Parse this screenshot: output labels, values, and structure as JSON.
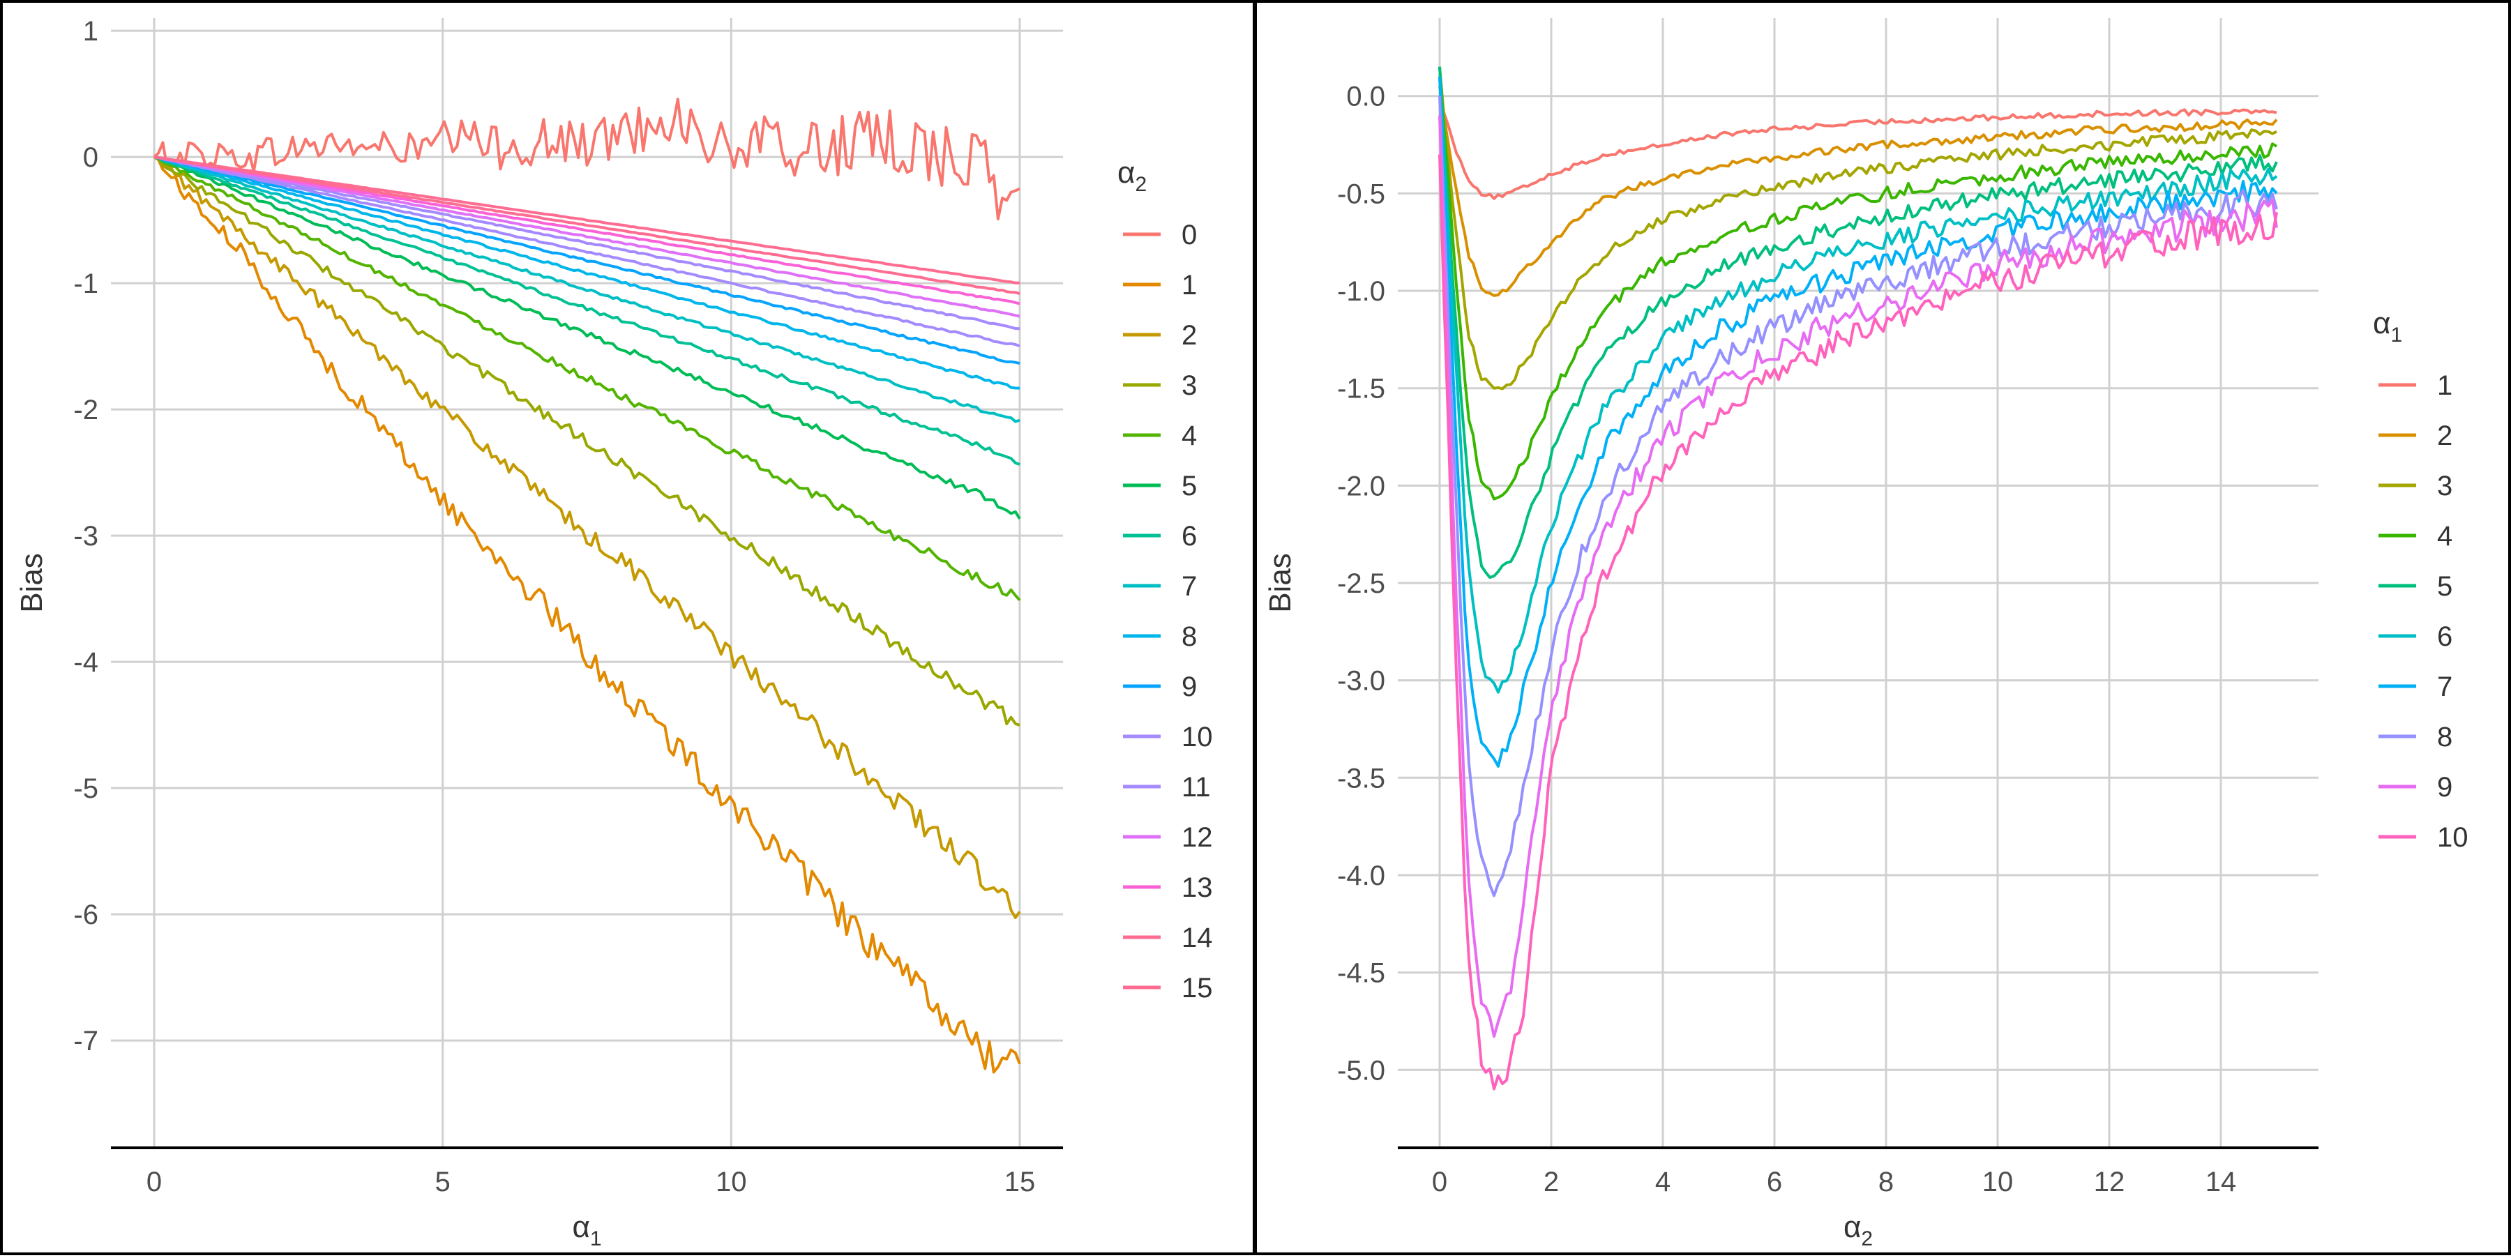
{
  "chart_data": [
    {
      "type": "line",
      "panel": "left",
      "xlabel": "α",
      "xlabel_sub": "1",
      "ylabel": "Bias",
      "xlim": [
        -0.75,
        15.75
      ],
      "ylim": [
        -7.85,
        1.1
      ],
      "x_ticks": [
        0,
        5,
        10,
        15
      ],
      "y_ticks": [
        1,
        0,
        -1,
        -2,
        -3,
        -4,
        -5,
        -6,
        -7
      ],
      "x": [
        0,
        0.75,
        1.5,
        2.25,
        3,
        3.75,
        4.5,
        5.25,
        6,
        6.75,
        7.5,
        8.25,
        9,
        9.75,
        10.5,
        11.25,
        12,
        12.75,
        13.5,
        14.25,
        15
      ],
      "legend_title": "α",
      "legend_title_sub": "2",
      "legend_position": "right",
      "series": [
        {
          "name": "0",
          "color": "#F8766D",
          "noise": 0.28,
          "values": [
            0,
            0.03,
            0,
            0.05,
            0.1,
            0.08,
            0.05,
            0.15,
            0.08,
            0.12,
            0.1,
            0.2,
            0.35,
            0.05,
            0.1,
            0.05,
            0.1,
            0.12,
            0.05,
            -0.05,
            -0.45
          ]
        },
        {
          "name": "1",
          "color": "#E38900",
          "noise": 0.14,
          "values": [
            0,
            -0.4,
            -0.75,
            -1.2,
            -1.65,
            -2.05,
            -2.45,
            -2.85,
            -3.2,
            -3.55,
            -3.95,
            -4.3,
            -4.65,
            -5.0,
            -5.35,
            -5.7,
            -6.05,
            -6.4,
            -6.7,
            -7.05,
            -7.25
          ]
        },
        {
          "name": "2",
          "color": "#C49A00",
          "noise": 0.1,
          "values": [
            0,
            -0.3,
            -0.6,
            -0.9,
            -1.2,
            -1.5,
            -1.8,
            -2.1,
            -2.4,
            -2.7,
            -3.0,
            -3.25,
            -3.55,
            -3.85,
            -4.15,
            -4.45,
            -4.75,
            -5.05,
            -5.35,
            -5.65,
            -6.0
          ]
        },
        {
          "name": "3",
          "color": "#99A800",
          "noise": 0.06,
          "values": [
            0,
            -0.23,
            -0.45,
            -0.68,
            -0.9,
            -1.13,
            -1.35,
            -1.58,
            -1.8,
            -2.03,
            -2.25,
            -2.48,
            -2.7,
            -2.93,
            -3.15,
            -3.38,
            -3.6,
            -3.83,
            -4.05,
            -4.28,
            -4.5
          ]
        },
        {
          "name": "4",
          "color": "#53B400",
          "noise": 0.04,
          "values": [
            0,
            -0.18,
            -0.35,
            -0.53,
            -0.7,
            -0.88,
            -1.05,
            -1.23,
            -1.4,
            -1.58,
            -1.75,
            -1.93,
            -2.1,
            -2.28,
            -2.45,
            -2.63,
            -2.8,
            -2.98,
            -3.15,
            -3.33,
            -3.5
          ]
        },
        {
          "name": "5",
          "color": "#00BC56",
          "noise": 0.03,
          "values": [
            0,
            -0.14,
            -0.28,
            -0.42,
            -0.56,
            -0.7,
            -0.84,
            -0.98,
            -1.12,
            -1.26,
            -1.4,
            -1.54,
            -1.68,
            -1.82,
            -1.96,
            -2.1,
            -2.24,
            -2.38,
            -2.52,
            -2.66,
            -2.85
          ]
        },
        {
          "name": "6",
          "color": "#00C094",
          "noise": 0.02,
          "values": [
            0,
            -0.12,
            -0.24,
            -0.36,
            -0.48,
            -0.6,
            -0.72,
            -0.84,
            -0.96,
            -1.08,
            -1.2,
            -1.32,
            -1.44,
            -1.56,
            -1.68,
            -1.8,
            -1.92,
            -2.04,
            -2.16,
            -2.28,
            -2.42
          ]
        },
        {
          "name": "7",
          "color": "#00BFC4",
          "noise": 0.015,
          "values": [
            0,
            -0.105,
            -0.21,
            -0.315,
            -0.42,
            -0.525,
            -0.63,
            -0.735,
            -0.84,
            -0.945,
            -1.05,
            -1.155,
            -1.26,
            -1.365,
            -1.47,
            -1.575,
            -1.68,
            -1.785,
            -1.89,
            -1.995,
            -2.1
          ]
        },
        {
          "name": "8",
          "color": "#00B6EB",
          "noise": 0.012,
          "values": [
            0,
            -0.092,
            -0.184,
            -0.276,
            -0.368,
            -0.46,
            -0.552,
            -0.644,
            -0.736,
            -0.828,
            -0.92,
            -1.012,
            -1.104,
            -1.196,
            -1.288,
            -1.38,
            -1.472,
            -1.564,
            -1.656,
            -1.748,
            -1.84
          ]
        },
        {
          "name": "9",
          "color": "#06A4FF",
          "noise": 0.01,
          "values": [
            0,
            -0.082,
            -0.164,
            -0.246,
            -0.328,
            -0.41,
            -0.492,
            -0.574,
            -0.656,
            -0.738,
            -0.82,
            -0.902,
            -0.984,
            -1.066,
            -1.148,
            -1.23,
            -1.312,
            -1.394,
            -1.476,
            -1.558,
            -1.64
          ]
        },
        {
          "name": "10",
          "color": "#A58AFF",
          "noise": 0.008,
          "values": [
            0,
            -0.075,
            -0.15,
            -0.225,
            -0.3,
            -0.375,
            -0.45,
            -0.525,
            -0.6,
            -0.675,
            -0.75,
            -0.825,
            -0.9,
            -0.975,
            -1.05,
            -1.125,
            -1.2,
            -1.275,
            -1.35,
            -1.425,
            -1.5
          ]
        },
        {
          "name": "11",
          "color": "#A58AFF",
          "noise": 0.007,
          "values": [
            0,
            -0.068,
            -0.136,
            -0.204,
            -0.272,
            -0.34,
            -0.408,
            -0.476,
            -0.544,
            -0.612,
            -0.68,
            -0.748,
            -0.816,
            -0.884,
            -0.952,
            -1.02,
            -1.088,
            -1.156,
            -1.224,
            -1.292,
            -1.36
          ]
        },
        {
          "name": "12",
          "color": "#DF70F8",
          "noise": 0.006,
          "values": [
            0,
            -0.063,
            -0.126,
            -0.189,
            -0.252,
            -0.315,
            -0.378,
            -0.441,
            -0.504,
            -0.567,
            -0.63,
            -0.693,
            -0.756,
            -0.819,
            -0.882,
            -0.945,
            -1.008,
            -1.071,
            -1.134,
            -1.197,
            -1.26
          ]
        },
        {
          "name": "13",
          "color": "#FB61D7",
          "noise": 0.005,
          "values": [
            0,
            -0.058,
            -0.116,
            -0.174,
            -0.232,
            -0.29,
            -0.348,
            -0.406,
            -0.464,
            -0.522,
            -0.58,
            -0.638,
            -0.696,
            -0.754,
            -0.812,
            -0.87,
            -0.928,
            -0.986,
            -1.044,
            -1.102,
            -1.16
          ]
        },
        {
          "name": "14",
          "color": "#FF6C91",
          "noise": 0.004,
          "values": [
            0,
            -0.054,
            -0.108,
            -0.162,
            -0.216,
            -0.27,
            -0.324,
            -0.378,
            -0.432,
            -0.486,
            -0.54,
            -0.594,
            -0.648,
            -0.702,
            -0.756,
            -0.81,
            -0.864,
            -0.918,
            -0.972,
            -1.026,
            -1.08
          ]
        },
        {
          "name": "15",
          "color": "#FF6C91",
          "noise": 0.003,
          "values": [
            0,
            -0.05,
            -0.1,
            -0.15,
            -0.2,
            -0.25,
            -0.3,
            -0.35,
            -0.4,
            -0.45,
            -0.5,
            -0.55,
            -0.6,
            -0.65,
            -0.7,
            -0.75,
            -0.8,
            -0.85,
            -0.9,
            -0.95,
            -1.0
          ]
        }
      ]
    },
    {
      "type": "line",
      "panel": "right",
      "xlabel": "α",
      "xlabel_sub": "2",
      "ylabel": "Bias",
      "xlim": [
        -0.75,
        15.75
      ],
      "ylim": [
        -5.4,
        0.4
      ],
      "x_ticks": [
        0,
        2,
        4,
        6,
        8,
        10,
        12,
        14
      ],
      "y_ticks": [
        "0.0",
        "-0.5",
        "-1.0",
        "-1.5",
        "-2.0",
        "-2.5",
        "-3.0",
        "-3.5",
        "-4.0",
        "-4.5",
        "-5.0"
      ],
      "x": [
        0,
        0.25,
        0.5,
        0.75,
        1,
        1.25,
        1.5,
        2,
        2.5,
        3,
        4,
        5,
        6,
        7,
        8,
        9,
        10,
        11,
        12,
        13,
        14,
        15
      ],
      "legend_title": "α",
      "legend_title_sub": "1",
      "legend_position": "right",
      "series": [
        {
          "name": "1",
          "color": "#F8766D",
          "noise": 0.01,
          "values": [
            0,
            -0.25,
            -0.42,
            -0.5,
            -0.52,
            -0.5,
            -0.47,
            -0.4,
            -0.35,
            -0.3,
            -0.25,
            -0.2,
            -0.17,
            -0.15,
            -0.13,
            -0.12,
            -0.11,
            -0.1,
            -0.09,
            -0.085,
            -0.08,
            -0.07
          ]
        },
        {
          "name": "2",
          "color": "#D89000",
          "noise": 0.015,
          "values": [
            0.05,
            -0.4,
            -0.8,
            -0.98,
            -1.02,
            -0.98,
            -0.9,
            -0.75,
            -0.62,
            -0.52,
            -0.42,
            -0.36,
            -0.32,
            -0.28,
            -0.25,
            -0.23,
            -0.21,
            -0.19,
            -0.17,
            -0.16,
            -0.15,
            -0.14
          ]
        },
        {
          "name": "3",
          "color": "#A3A500",
          "noise": 0.02,
          "values": [
            0.15,
            -0.6,
            -1.2,
            -1.45,
            -1.5,
            -1.47,
            -1.38,
            -1.15,
            -0.95,
            -0.8,
            -0.63,
            -0.54,
            -0.47,
            -0.41,
            -0.37,
            -0.33,
            -0.3,
            -0.27,
            -0.25,
            -0.23,
            -0.21,
            -0.2
          ]
        },
        {
          "name": "4",
          "color": "#39B600",
          "noise": 0.025,
          "values": [
            0.15,
            -0.8,
            -1.6,
            -1.98,
            -2.08,
            -2.02,
            -1.88,
            -1.55,
            -1.28,
            -1.08,
            -0.85,
            -0.72,
            -0.63,
            -0.56,
            -0.5,
            -0.45,
            -0.41,
            -0.37,
            -0.34,
            -0.32,
            -0.3,
            -0.27
          ]
        },
        {
          "name": "5",
          "color": "#00BF7D",
          "noise": 0.03,
          "values": [
            0.15,
            -1.0,
            -2.0,
            -2.42,
            -2.48,
            -2.4,
            -2.22,
            -1.85,
            -1.55,
            -1.32,
            -1.05,
            -0.88,
            -0.77,
            -0.69,
            -0.62,
            -0.56,
            -0.51,
            -0.47,
            -0.43,
            -0.4,
            -0.37,
            -0.34
          ]
        },
        {
          "name": "6",
          "color": "#00BFC4",
          "noise": 0.035,
          "values": [
            0.1,
            -1.2,
            -2.4,
            -2.92,
            -3.05,
            -2.95,
            -2.72,
            -2.2,
            -1.85,
            -1.58,
            -1.25,
            -1.05,
            -0.92,
            -0.82,
            -0.74,
            -0.67,
            -0.61,
            -0.56,
            -0.52,
            -0.48,
            -0.44,
            -0.4
          ]
        },
        {
          "name": "7",
          "color": "#00B0F6",
          "noise": 0.04,
          "values": [
            0.1,
            -1.5,
            -2.9,
            -3.35,
            -3.45,
            -3.32,
            -3.05,
            -2.5,
            -2.1,
            -1.78,
            -1.42,
            -1.2,
            -1.05,
            -0.94,
            -0.85,
            -0.77,
            -0.7,
            -0.64,
            -0.59,
            -0.55,
            -0.51,
            -0.47
          ]
        },
        {
          "name": "8",
          "color": "#9590FF",
          "noise": 0.045,
          "values": [
            0,
            -1.8,
            -3.4,
            -3.95,
            -4.08,
            -3.9,
            -3.55,
            -2.85,
            -2.38,
            -2.02,
            -1.6,
            -1.35,
            -1.18,
            -1.06,
            -0.96,
            -0.87,
            -0.79,
            -0.72,
            -0.66,
            -0.61,
            -0.57,
            -0.53
          ]
        },
        {
          "name": "9",
          "color": "#E76BF3",
          "noise": 0.05,
          "values": [
            -0.1,
            -2.2,
            -4.0,
            -4.62,
            -4.82,
            -4.6,
            -4.15,
            -3.15,
            -2.6,
            -2.2,
            -1.75,
            -1.48,
            -1.3,
            -1.17,
            -1.06,
            -0.96,
            -0.87,
            -0.79,
            -0.73,
            -0.68,
            -0.63,
            -0.6
          ]
        },
        {
          "name": "10",
          "color": "#FF62BC",
          "noise": 0.05,
          "values": [
            -0.3,
            -2.6,
            -4.4,
            -4.95,
            -5.1,
            -4.98,
            -4.7,
            -3.45,
            -2.85,
            -2.42,
            -1.92,
            -1.63,
            -1.43,
            -1.28,
            -1.16,
            -1.05,
            -0.95,
            -0.87,
            -0.8,
            -0.74,
            -0.69,
            -0.66
          ]
        }
      ]
    }
  ]
}
